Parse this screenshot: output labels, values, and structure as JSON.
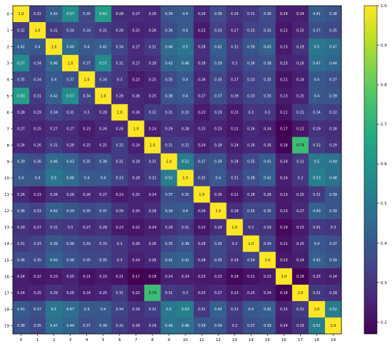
{
  "chart_data": {
    "type": "heatmap",
    "title": "",
    "xlabel": "",
    "ylabel": "",
    "x_categories": [
      "0",
      "1",
      "2",
      "3",
      "4",
      "5",
      "6",
      "7",
      "8",
      "9",
      "10",
      "11",
      "12",
      "13",
      "14",
      "15",
      "16",
      "17",
      "18",
      "19"
    ],
    "y_categories": [
      "0",
      "1",
      "2",
      "3",
      "4",
      "5",
      "6",
      "7",
      "8",
      "9",
      "10",
      "11",
      "12",
      "13",
      "14",
      "15",
      "16",
      "17",
      "18",
      "19"
    ],
    "matrix": [
      [
        1.0,
        0.32,
        0.42,
        0.57,
        0.35,
        0.63,
        0.28,
        0.27,
        0.26,
        0.39,
        0.4,
        0.26,
        0.36,
        0.29,
        0.31,
        0.36,
        0.24,
        0.24,
        0.41,
        0.38
      ],
      [
        0.32,
        1.0,
        0.31,
        0.34,
        0.34,
        0.31,
        0.29,
        0.25,
        0.26,
        0.36,
        0.4,
        0.23,
        0.33,
        0.27,
        0.33,
        0.35,
        0.22,
        0.25,
        0.37,
        0.35
      ],
      [
        0.42,
        0.4,
        1.0,
        0.46,
        0.4,
        0.42,
        0.34,
        0.27,
        0.31,
        0.46,
        0.5,
        0.28,
        0.42,
        0.31,
        0.39,
        0.43,
        0.23,
        0.29,
        0.5,
        0.47
      ],
      [
        0.57,
        0.34,
        0.46,
        1.0,
        0.37,
        0.57,
        0.31,
        0.27,
        0.28,
        0.43,
        0.46,
        0.28,
        0.39,
        0.3,
        0.36,
        0.38,
        0.25,
        0.26,
        0.47,
        0.44
      ],
      [
        0.35,
        0.34,
        0.4,
        0.37,
        1.0,
        0.34,
        0.3,
        0.23,
        0.25,
        0.35,
        0.4,
        0.26,
        0.35,
        0.27,
        0.33,
        0.35,
        0.21,
        0.24,
        0.4,
        0.37
      ],
      [
        0.63,
        0.31,
        0.42,
        0.57,
        0.34,
        1.0,
        0.28,
        0.26,
        0.25,
        0.38,
        0.4,
        0.27,
        0.37,
        0.29,
        0.33,
        0.35,
        0.23,
        0.25,
        0.4,
        0.39
      ],
      [
        0.28,
        0.29,
        0.34,
        0.31,
        0.3,
        0.28,
        1.0,
        0.26,
        0.32,
        0.31,
        0.33,
        0.23,
        0.29,
        0.23,
        0.3,
        0.3,
        0.21,
        0.31,
        0.34,
        0.32
      ],
      [
        0.27,
        0.25,
        0.27,
        0.27,
        0.23,
        0.26,
        0.26,
        1.0,
        0.24,
        0.29,
        0.28,
        0.25,
        0.25,
        0.22,
        0.26,
        0.24,
        0.17,
        0.22,
        0.29,
        0.28
      ],
      [
        0.26,
        0.26,
        0.31,
        0.28,
        0.25,
        0.25,
        0.32,
        0.24,
        1.0,
        0.31,
        0.32,
        0.24,
        0.28,
        0.24,
        0.26,
        0.26,
        0.18,
        0.74,
        0.32,
        0.29
      ],
      [
        0.39,
        0.36,
        0.46,
        0.43,
        0.35,
        0.38,
        0.31,
        0.29,
        0.31,
        1.0,
        0.52,
        0.37,
        0.39,
        0.28,
        0.35,
        0.41,
        0.24,
        0.31,
        0.5,
        0.49
      ],
      [
        0.4,
        0.4,
        0.5,
        0.46,
        0.4,
        0.4,
        0.33,
        0.28,
        0.32,
        0.52,
        1.0,
        0.35,
        0.4,
        0.31,
        0.38,
        0.42,
        0.24,
        0.3,
        0.53,
        0.48
      ],
      [
        0.26,
        0.23,
        0.28,
        0.28,
        0.26,
        0.27,
        0.23,
        0.25,
        0.24,
        0.37,
        0.35,
        1.0,
        0.26,
        0.22,
        0.28,
        0.28,
        0.23,
        0.25,
        0.31,
        0.39
      ],
      [
        0.36,
        0.33,
        0.42,
        0.39,
        0.35,
        0.37,
        0.29,
        0.25,
        0.28,
        0.39,
        0.4,
        0.26,
        1.0,
        0.28,
        0.35,
        0.35,
        0.23,
        0.27,
        0.43,
        0.39
      ],
      [
        0.29,
        0.27,
        0.31,
        0.3,
        0.27,
        0.29,
        0.23,
        0.22,
        0.24,
        0.28,
        0.31,
        0.22,
        0.28,
        1.0,
        0.3,
        0.29,
        0.19,
        0.23,
        0.31,
        0.3
      ],
      [
        0.31,
        0.33,
        0.39,
        0.36,
        0.33,
        0.33,
        0.3,
        0.26,
        0.26,
        0.35,
        0.38,
        0.28,
        0.35,
        0.3,
        1.0,
        0.34,
        0.21,
        0.25,
        0.4,
        0.37
      ],
      [
        0.36,
        0.35,
        0.43,
        0.38,
        0.35,
        0.35,
        0.3,
        0.24,
        0.26,
        0.41,
        0.42,
        0.28,
        0.35,
        0.29,
        0.34,
        1.0,
        0.23,
        0.24,
        0.42,
        0.39
      ],
      [
        0.24,
        0.22,
        0.23,
        0.25,
        0.21,
        0.23,
        0.21,
        0.17,
        0.18,
        0.24,
        0.24,
        0.23,
        0.23,
        0.19,
        0.21,
        0.23,
        1.0,
        0.18,
        0.25,
        0.24
      ],
      [
        0.24,
        0.25,
        0.29,
        0.26,
        0.24,
        0.25,
        0.31,
        0.22,
        0.74,
        0.31,
        0.3,
        0.25,
        0.27,
        0.23,
        0.25,
        0.24,
        0.18,
        1.0,
        0.31,
        0.29
      ],
      [
        0.41,
        0.37,
        0.5,
        0.47,
        0.4,
        0.4,
        0.34,
        0.29,
        0.32,
        0.5,
        0.53,
        0.31,
        0.43,
        0.31,
        0.4,
        0.42,
        0.25,
        0.31,
        1.0,
        0.52
      ],
      [
        0.38,
        0.35,
        0.47,
        0.44,
        0.37,
        0.39,
        0.32,
        0.28,
        0.29,
        0.49,
        0.48,
        0.39,
        0.39,
        0.3,
        0.37,
        0.39,
        0.24,
        0.29,
        0.52,
        1.0
      ]
    ],
    "zlim": [
      0.17,
      1.0
    ],
    "colormap": "viridis",
    "colorbar_ticks": [
      "0.2",
      "0.3",
      "0.4",
      "0.5",
      "0.6",
      "0.7",
      "0.8",
      "0.9",
      "1.0"
    ],
    "colorbar_tick_values": [
      0.2,
      0.3,
      0.4,
      0.5,
      0.6,
      0.7,
      0.8,
      0.9,
      1.0
    ],
    "colorbar_position": "right",
    "annotations": "cell values printed in each cell",
    "grid": false
  }
}
